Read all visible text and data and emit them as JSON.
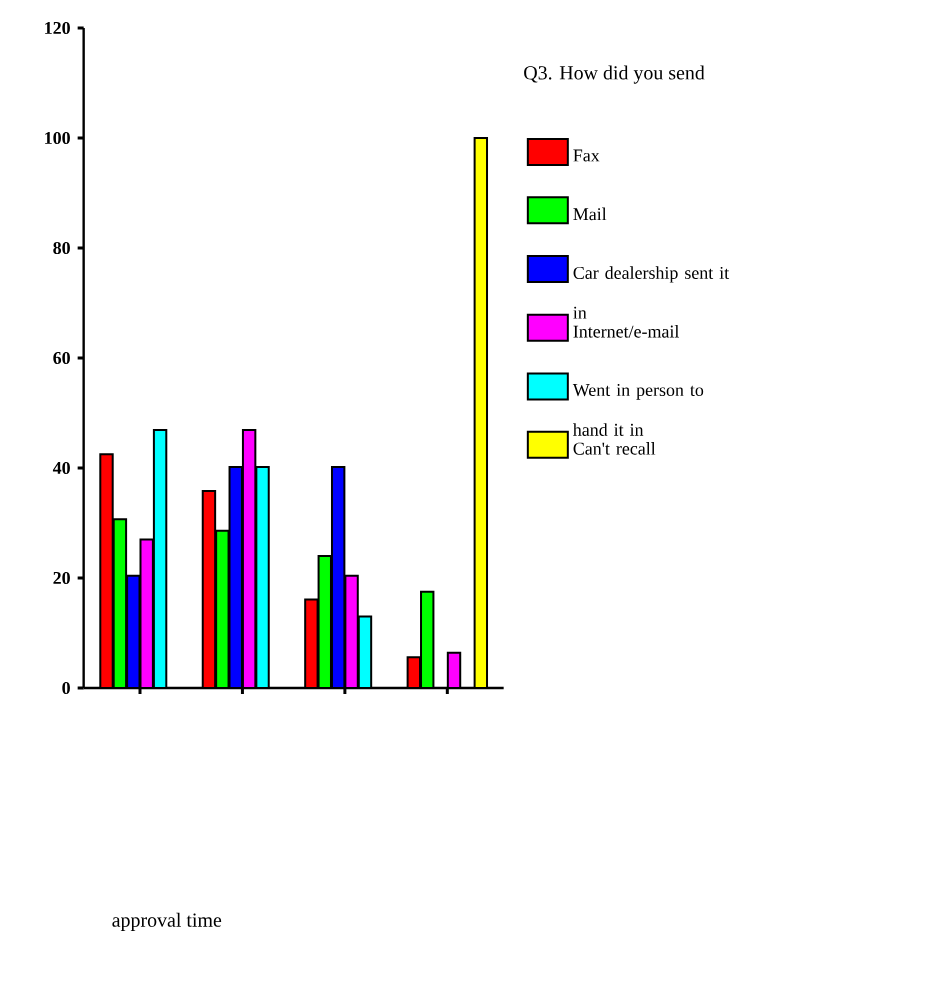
{
  "chart_data": {
    "type": "bar",
    "legend_title": "Q3. How did you send",
    "annotations": [
      "approval time"
    ],
    "categories": [
      null,
      null,
      null,
      null
    ],
    "series": [
      {
        "name": "Fax",
        "color": "#ff0000",
        "values": [
          42.5,
          35.8,
          16.1,
          5.6
        ]
      },
      {
        "name": "Mail",
        "color": "#00ff00",
        "values": [
          30.7,
          28.6,
          24,
          17.5
        ]
      },
      {
        "name": "Car dealership sent it in",
        "color": "#0000ff",
        "values": [
          20.4,
          40.2,
          40.2,
          null
        ]
      },
      {
        "name": "Internet/e-mail",
        "color": "#ff00ff",
        "values": [
          27,
          46.9,
          20.4,
          6.4
        ]
      },
      {
        "name": "Went in person to hand it in",
        "color": "#00ffff",
        "values": [
          46.9,
          40.2,
          13,
          null
        ]
      },
      {
        "name": "Can't recall",
        "color": "#ffff00",
        "values": [
          null,
          null,
          null,
          100
        ]
      }
    ],
    "ylim": [
      0,
      120
    ],
    "yticks": [
      0,
      20,
      40,
      60,
      80,
      100,
      120
    ],
    "legend": "right"
  }
}
